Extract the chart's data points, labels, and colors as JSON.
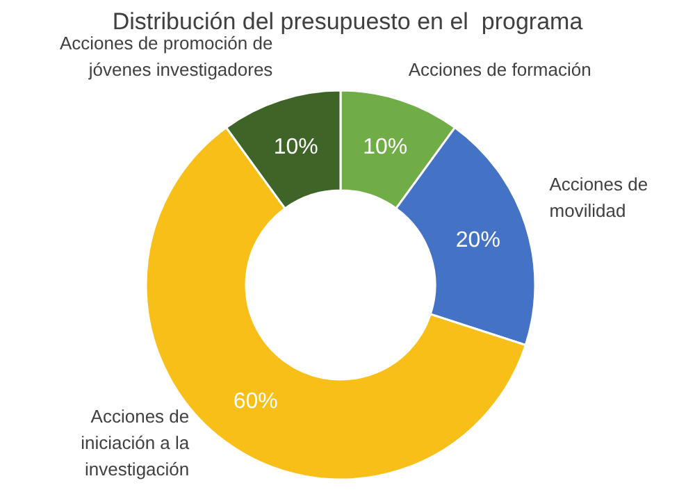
{
  "chart_data": {
    "type": "donut",
    "title": "Distribución del presupuesto en el  programa",
    "categories": [
      "Acciones de formación",
      "Acciones de movilidad",
      "Acciones de iniciación a la investigación",
      "Acciones de promoción de jóvenes investigadores"
    ],
    "values": [
      10,
      20,
      60,
      10
    ],
    "colors": [
      "#70ad47",
      "#4472c4",
      "#f9bf19",
      "#3f6428"
    ],
    "value_labels": [
      "10%",
      "20%",
      "60%",
      "10%"
    ],
    "legend": false
  }
}
